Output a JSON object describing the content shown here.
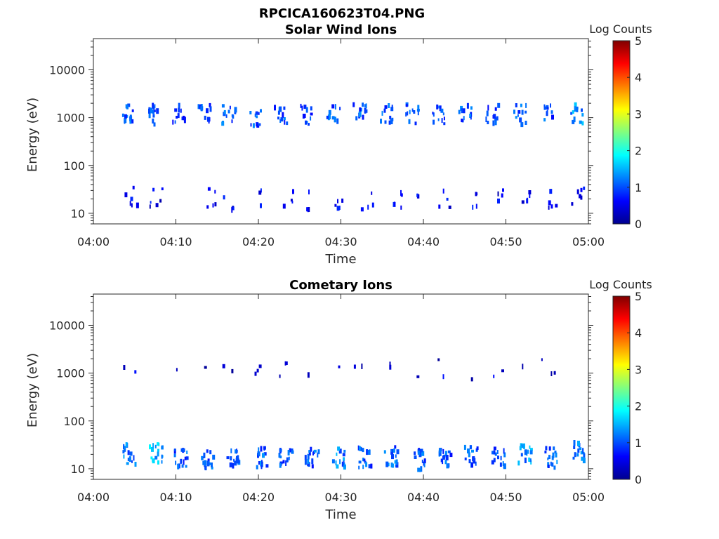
{
  "figure": {
    "title": "RPCICA160623T04.PNG"
  },
  "colormap": {
    "name": "jet",
    "stops": [
      "#00008f",
      "#0000ff",
      "#0080ff",
      "#00ffff",
      "#80ff80",
      "#ffff00",
      "#ff8000",
      "#ff0000",
      "#800000"
    ]
  },
  "chart_data": [
    {
      "type": "heatmap",
      "title": "Solar Wind Ions",
      "xlabel": "Time",
      "ylabel": "Energy (eV)",
      "yscale": "log",
      "xlim": [
        "04:00",
        "05:00"
      ],
      "ylim": [
        6,
        45000
      ],
      "xticks": [
        "04:00",
        "04:10",
        "04:20",
        "04:30",
        "04:40",
        "04:50",
        "05:00"
      ],
      "yticks": [
        {
          "value": 10,
          "label": "10"
        },
        {
          "value": 100,
          "label": "100"
        },
        {
          "value": 1000,
          "label": "1000"
        },
        {
          "value": 10000,
          "label": "10000"
        }
      ],
      "colorbar": {
        "label": "Log Counts",
        "range": [
          0,
          5
        ],
        "ticks": [
          "0",
          "1",
          "2",
          "3",
          "4",
          "5"
        ]
      },
      "clusters": [
        {
          "t": 4.1,
          "e": 1150,
          "level": 1.0,
          "count": 14
        },
        {
          "t": 7.1,
          "e": 1150,
          "level": 1.0,
          "count": 14
        },
        {
          "t": 10.2,
          "e": 1150,
          "level": 0.9,
          "count": 12
        },
        {
          "t": 13.3,
          "e": 1150,
          "level": 1.0,
          "count": 12
        },
        {
          "t": 16.3,
          "e": 1100,
          "level": 1.0,
          "count": 13
        },
        {
          "t": 19.4,
          "e": 1050,
          "level": 1.0,
          "count": 12
        },
        {
          "t": 22.6,
          "e": 1100,
          "level": 1.0,
          "count": 12
        },
        {
          "t": 25.8,
          "e": 1150,
          "level": 1.0,
          "count": 12
        },
        {
          "t": 29.0,
          "e": 1200,
          "level": 1.0,
          "count": 12
        },
        {
          "t": 32.2,
          "e": 1200,
          "level": 1.0,
          "count": 12
        },
        {
          "t": 35.4,
          "e": 1200,
          "level": 1.0,
          "count": 12
        },
        {
          "t": 38.6,
          "e": 1200,
          "level": 1.0,
          "count": 12
        },
        {
          "t": 41.8,
          "e": 1200,
          "level": 1.0,
          "count": 12
        },
        {
          "t": 45.0,
          "e": 1200,
          "level": 1.0,
          "count": 12
        },
        {
          "t": 48.2,
          "e": 1150,
          "level": 1.0,
          "count": 12
        },
        {
          "t": 51.6,
          "e": 1150,
          "level": 1.1,
          "count": 12
        },
        {
          "t": 54.8,
          "e": 1200,
          "level": 1.0,
          "count": 10
        },
        {
          "t": 58.6,
          "e": 1200,
          "level": 1.3,
          "count": 12
        },
        {
          "t": 4.5,
          "e": 22,
          "level": 0.5,
          "count": 6
        },
        {
          "t": 7.5,
          "e": 21,
          "level": 0.5,
          "count": 6
        },
        {
          "t": 14.0,
          "e": 21,
          "level": 0.5,
          "count": 5
        },
        {
          "t": 16.5,
          "e": 19,
          "level": 0.5,
          "count": 4
        },
        {
          "t": 20.0,
          "e": 22,
          "level": 0.5,
          "count": 3
        },
        {
          "t": 23.5,
          "e": 19,
          "level": 0.5,
          "count": 4
        },
        {
          "t": 26.5,
          "e": 19,
          "level": 0.5,
          "count": 4
        },
        {
          "t": 30.0,
          "e": 20,
          "level": 0.5,
          "count": 5
        },
        {
          "t": 33.0,
          "e": 19,
          "level": 0.5,
          "count": 4
        },
        {
          "t": 36.5,
          "e": 19,
          "level": 0.5,
          "count": 5
        },
        {
          "t": 39.5,
          "e": 21,
          "level": 0.5,
          "count": 3
        },
        {
          "t": 42.5,
          "e": 20,
          "level": 0.5,
          "count": 4
        },
        {
          "t": 46.0,
          "e": 18,
          "level": 0.5,
          "count": 4
        },
        {
          "t": 49.0,
          "e": 21,
          "level": 0.5,
          "count": 4
        },
        {
          "t": 52.0,
          "e": 22,
          "level": 0.5,
          "count": 5
        },
        {
          "t": 55.5,
          "e": 21,
          "level": 0.5,
          "count": 5
        },
        {
          "t": 58.7,
          "e": 25,
          "level": 0.6,
          "count": 6
        }
      ]
    },
    {
      "type": "heatmap",
      "title": "Cometary Ions",
      "xlabel": "Time",
      "ylabel": "Energy (eV)",
      "yscale": "log",
      "xlim": [
        "04:00",
        "05:00"
      ],
      "ylim": [
        6,
        45000
      ],
      "xticks": [
        "04:00",
        "04:10",
        "04:20",
        "04:30",
        "04:40",
        "04:50",
        "05:00"
      ],
      "yticks": [
        {
          "value": 10,
          "label": "10"
        },
        {
          "value": 100,
          "label": "100"
        },
        {
          "value": 1000,
          "label": "1000"
        },
        {
          "value": 10000,
          "label": "10000"
        }
      ],
      "colorbar": {
        "label": "Log Counts",
        "range": [
          0,
          5
        ],
        "ticks": [
          "0",
          "1",
          "2",
          "3",
          "4",
          "5"
        ]
      },
      "clusters": [
        {
          "t": 4.2,
          "e": 20,
          "level": 1.2,
          "count": 18
        },
        {
          "t": 7.5,
          "e": 21,
          "level": 1.5,
          "count": 18
        },
        {
          "t": 10.5,
          "e": 16,
          "level": 1.0,
          "count": 16
        },
        {
          "t": 13.7,
          "e": 16,
          "level": 1.0,
          "count": 16
        },
        {
          "t": 16.9,
          "e": 17,
          "level": 1.0,
          "count": 16
        },
        {
          "t": 20.1,
          "e": 17,
          "level": 1.1,
          "count": 16
        },
        {
          "t": 23.2,
          "e": 17,
          "level": 1.0,
          "count": 16
        },
        {
          "t": 26.4,
          "e": 18,
          "level": 1.0,
          "count": 16
        },
        {
          "t": 29.6,
          "e": 17,
          "level": 1.2,
          "count": 16
        },
        {
          "t": 32.8,
          "e": 17,
          "level": 1.0,
          "count": 16
        },
        {
          "t": 36.0,
          "e": 18,
          "level": 1.1,
          "count": 16
        },
        {
          "t": 39.3,
          "e": 15,
          "level": 1.0,
          "count": 16
        },
        {
          "t": 42.5,
          "e": 17,
          "level": 1.0,
          "count": 16
        },
        {
          "t": 45.7,
          "e": 18,
          "level": 1.0,
          "count": 16
        },
        {
          "t": 49.0,
          "e": 17,
          "level": 1.0,
          "count": 16
        },
        {
          "t": 52.2,
          "e": 19,
          "level": 1.3,
          "count": 16
        },
        {
          "t": 55.4,
          "e": 17,
          "level": 1.1,
          "count": 16
        },
        {
          "t": 58.8,
          "e": 22,
          "level": 1.3,
          "count": 16
        },
        {
          "t": 4.2,
          "e": 1100,
          "level": 0.4,
          "count": 2
        },
        {
          "t": 10.0,
          "e": 1150,
          "level": 0.4,
          "count": 1
        },
        {
          "t": 13.0,
          "e": 1200,
          "level": 0.4,
          "count": 1
        },
        {
          "t": 16.0,
          "e": 1050,
          "level": 0.4,
          "count": 2
        },
        {
          "t": 19.3,
          "e": 1100,
          "level": 0.4,
          "count": 3
        },
        {
          "t": 22.8,
          "e": 1050,
          "level": 0.4,
          "count": 3
        },
        {
          "t": 26.0,
          "e": 1150,
          "level": 0.4,
          "count": 1
        },
        {
          "t": 29.0,
          "e": 1200,
          "level": 0.4,
          "count": 1
        },
        {
          "t": 32.2,
          "e": 1150,
          "level": 0.4,
          "count": 2
        },
        {
          "t": 35.3,
          "e": 1150,
          "level": 0.4,
          "count": 2
        },
        {
          "t": 38.5,
          "e": 1100,
          "level": 0.4,
          "count": 1
        },
        {
          "t": 41.8,
          "e": 1250,
          "level": 0.4,
          "count": 2
        },
        {
          "t": 45.2,
          "e": 1150,
          "level": 0.4,
          "count": 1
        },
        {
          "t": 48.8,
          "e": 1150,
          "level": 0.4,
          "count": 2
        },
        {
          "t": 52.0,
          "e": 1200,
          "level": 0.4,
          "count": 1
        },
        {
          "t": 55.0,
          "e": 1350,
          "level": 0.4,
          "count": 3
        }
      ]
    }
  ]
}
